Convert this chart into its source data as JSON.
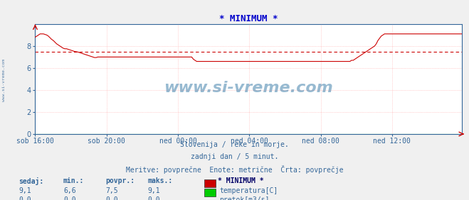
{
  "title": "* MINIMUM *",
  "title_color": "#0000cc",
  "bg_color": "#f0f0f0",
  "plot_bg_color": "#ffffff",
  "grid_color": "#ffaaaa",
  "xlim": [
    0,
    287
  ],
  "ylim": [
    0,
    10
  ],
  "yticks": [
    0,
    2,
    4,
    6,
    8
  ],
  "xtick_labels": [
    "sob 16:00",
    "sob 20:00",
    "ned 00:00",
    "ned 04:00",
    "ned 08:00",
    "ned 12:00"
  ],
  "xtick_positions": [
    0,
    48,
    96,
    144,
    192,
    240
  ],
  "avg_line_y": 7.5,
  "avg_line_color": "#cc0000",
  "temp_color": "#cc0000",
  "flow_color": "#00cc00",
  "watermark": "www.si-vreme.com",
  "watermark_color": "#1a6699",
  "sub_text1": "Slovenija / reke in morje.",
  "sub_text2": "zadnji dan / 5 minut.",
  "sub_text3": "Meritve: povprečne  Enote: metrične  Črta: povprečje",
  "sub_text_color": "#336699",
  "legend_header": "* MINIMUM *",
  "legend_items": [
    {
      "label": "temperatura[C]",
      "color": "#cc0000"
    },
    {
      "label": "pretok[m3/s]",
      "color": "#00cc00"
    }
  ],
  "table_headers": [
    "sedaj:",
    "min.:",
    "povpr.:",
    "maks.:"
  ],
  "table_data": [
    [
      "9,1",
      "6,6",
      "7,5",
      "9,1"
    ],
    [
      "0,0",
      "0,0",
      "0,0",
      "0,0"
    ]
  ],
  "axis_color": "#336699",
  "temp_data": [
    8.8,
    8.9,
    9.0,
    9.1,
    9.1,
    9.1,
    9.05,
    9.0,
    8.9,
    8.75,
    8.6,
    8.5,
    8.35,
    8.2,
    8.1,
    8.0,
    7.9,
    7.8,
    7.75,
    7.75,
    7.7,
    7.65,
    7.6,
    7.55,
    7.5,
    7.48,
    7.45,
    7.4,
    7.35,
    7.3,
    7.25,
    7.2,
    7.15,
    7.1,
    7.05,
    7.0,
    6.95,
    6.95,
    7.0,
    7.0,
    7.0,
    7.0,
    7.0,
    7.0,
    7.0,
    7.0,
    7.0,
    7.0,
    7.0,
    7.0,
    7.0,
    7.0,
    7.0,
    7.0,
    7.0,
    7.0,
    7.0,
    7.0,
    7.0,
    7.0,
    7.0,
    7.0,
    7.0,
    7.0,
    7.0,
    7.0,
    7.0,
    7.0,
    7.0,
    7.0,
    7.0,
    7.0,
    7.0,
    7.0,
    7.0,
    7.0,
    7.0,
    7.0,
    7.0,
    7.0,
    7.0,
    7.0,
    7.0,
    7.0,
    7.0,
    7.0,
    7.0,
    7.0,
    7.0,
    7.0,
    7.0,
    7.0,
    7.0,
    7.0,
    7.0,
    7.0,
    6.8,
    6.7,
    6.6,
    6.6,
    6.6,
    6.6,
    6.6,
    6.6,
    6.6,
    6.6,
    6.6,
    6.6,
    6.6,
    6.6,
    6.6,
    6.6,
    6.6,
    6.6,
    6.6,
    6.6,
    6.6,
    6.6,
    6.6,
    6.6,
    6.6,
    6.6,
    6.6,
    6.6,
    6.6,
    6.6,
    6.6,
    6.6,
    6.6,
    6.6,
    6.6,
    6.6,
    6.6,
    6.6,
    6.6,
    6.6,
    6.6,
    6.6,
    6.6,
    6.6,
    6.6,
    6.6,
    6.6,
    6.6,
    6.6,
    6.6,
    6.6,
    6.6,
    6.6,
    6.6,
    6.6,
    6.6,
    6.6,
    6.6,
    6.6,
    6.6,
    6.6,
    6.6,
    6.6,
    6.6,
    6.6,
    6.6,
    6.6,
    6.6,
    6.6,
    6.6,
    6.6,
    6.6,
    6.6,
    6.6,
    6.6,
    6.6,
    6.6,
    6.6,
    6.6,
    6.6,
    6.6,
    6.6,
    6.6,
    6.6,
    6.6,
    6.6,
    6.6,
    6.6,
    6.6,
    6.6,
    6.6,
    6.6,
    6.6,
    6.6,
    6.6,
    6.6,
    6.7,
    6.7,
    6.8,
    6.9,
    7.0,
    7.1,
    7.2,
    7.3,
    7.4,
    7.5,
    7.6,
    7.7,
    7.8,
    7.9,
    8.0,
    8.2,
    8.5,
    8.7,
    8.9,
    9.0,
    9.1,
    9.1,
    9.1,
    9.1,
    9.1,
    9.1,
    9.1,
    9.1,
    9.1,
    9.1,
    9.1,
    9.1,
    9.1,
    9.1,
    9.1,
    9.1,
    9.1,
    9.1,
    9.1,
    9.1,
    9.1,
    9.1,
    9.1,
    9.1,
    9.1,
    9.1,
    9.1,
    9.1,
    9.1,
    9.1,
    9.1,
    9.1,
    9.1,
    9.1,
    9.1,
    9.1,
    9.1,
    9.1,
    9.1,
    9.1,
    9.1,
    9.1,
    9.1,
    9.1,
    9.1,
    9.1,
    9.1,
    9.1
  ]
}
